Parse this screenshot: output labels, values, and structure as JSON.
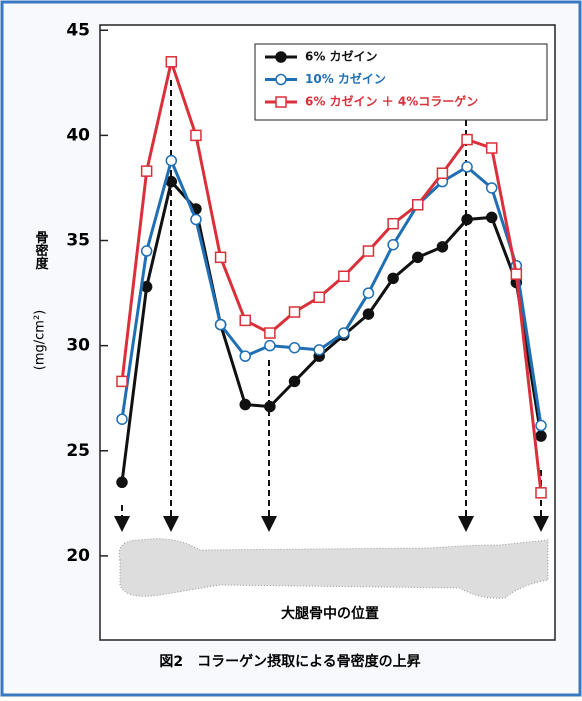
{
  "chart_data": {
    "type": "line",
    "caption": "図2　コラーゲン摂取による骨密度の上昇",
    "y_label": "骨密度",
    "y_unit": "(mg/cm²)",
    "x_annotation": "大腿骨中の位置",
    "categories": [
      null,
      null,
      null,
      null,
      null,
      null,
      null,
      null,
      null,
      null,
      null,
      null,
      null,
      null,
      null,
      null,
      null,
      null
    ],
    "ylim": [
      16,
      45.25
    ],
    "yticks": [
      20,
      25,
      30,
      35,
      40,
      45
    ],
    "legend": "upper right",
    "series": [
      {
        "name": "6% カゼイン",
        "color": "#111111",
        "marker": "circle",
        "marker_fill": "#111111",
        "values": [
          23.5,
          32.8,
          37.8,
          36.5,
          31.0,
          27.2,
          27.1,
          28.3,
          29.5,
          30.5,
          31.5,
          33.2,
          34.2,
          34.7,
          36.0,
          36.1,
          33.0,
          25.7
        ]
      },
      {
        "name": "10% カゼイン",
        "color": "#1f6fb5",
        "marker": "circle",
        "marker_fill": "#ffffff",
        "values": [
          26.5,
          34.5,
          38.8,
          36.0,
          31.0,
          29.5,
          30.0,
          29.9,
          29.8,
          30.6,
          32.5,
          34.8,
          36.7,
          37.8,
          38.5,
          37.5,
          33.8,
          26.2
        ]
      },
      {
        "name": "6% カゼイン ＋ 4%コラーゲン",
        "color": "#d9303a",
        "marker": "square",
        "marker_fill": "#ffffff",
        "values": [
          28.3,
          38.3,
          43.5,
          40.0,
          34.2,
          31.2,
          30.6,
          31.6,
          32.3,
          33.3,
          34.5,
          35.8,
          36.7,
          38.2,
          39.8,
          39.4,
          33.4,
          23.0
        ]
      }
    ]
  }
}
